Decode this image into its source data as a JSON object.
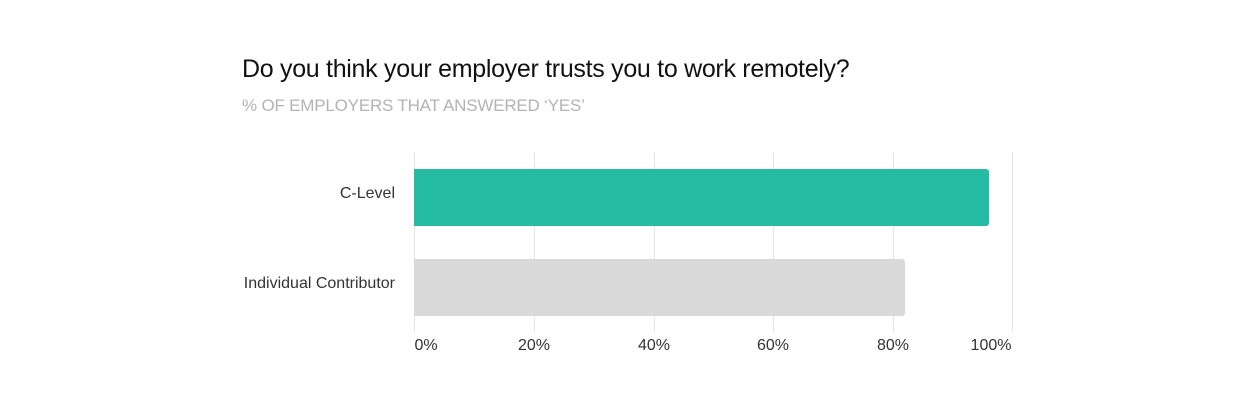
{
  "chart_data": {
    "type": "bar",
    "orientation": "horizontal",
    "title": "Do you think your employer trusts you to work remotely?",
    "subtitle": "% OF EMPLOYERS THAT ANSWERED ‘YES’",
    "categories": [
      "C-Level",
      "Individual Contributor"
    ],
    "values": [
      96,
      82
    ],
    "colors": [
      "#26bca4",
      "#d9d9d9"
    ],
    "xlabel": "",
    "ylabel": "",
    "xlim": [
      0,
      100
    ],
    "x_ticks": [
      "0%",
      "20%",
      "40%",
      "60%",
      "80%",
      "100%"
    ],
    "grid": true,
    "legend": false
  }
}
